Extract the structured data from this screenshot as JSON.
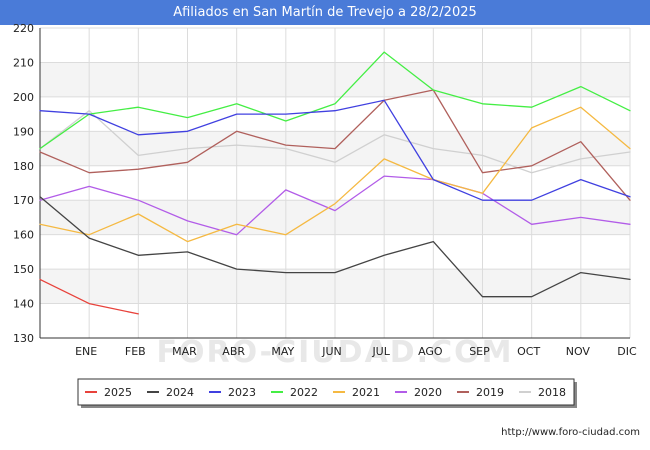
{
  "page": {
    "title": "Afiliados en San Martín de Trevejo a 28/2/2025"
  },
  "credit": "http://www.foro-ciudad.com",
  "watermark": "FORO-CIUDAD.COM",
  "chart_data": {
    "type": "line",
    "categories": [
      "",
      "ENE",
      "FEB",
      "MAR",
      "ABR",
      "MAY",
      "JUN",
      "JUL",
      "AGO",
      "SEP",
      "OCT",
      "NOV",
      "DIC"
    ],
    "y_ticks": [
      130,
      140,
      150,
      160,
      170,
      180,
      190,
      200,
      210,
      220
    ],
    "ylim": [
      130,
      220
    ],
    "grid": true,
    "legend_position": "bottom",
    "series": [
      {
        "name": "2025",
        "color": "#e8423b",
        "values": [
          147,
          140,
          137,
          null,
          null,
          null,
          null,
          null,
          null,
          null,
          null,
          null,
          null
        ]
      },
      {
        "name": "2024",
        "color": "#444444",
        "values": [
          171,
          159,
          154,
          155,
          150,
          149,
          149,
          154,
          158,
          142,
          142,
          149,
          147
        ]
      },
      {
        "name": "2023",
        "color": "#4040e0",
        "values": [
          196,
          195,
          189,
          190,
          195,
          195,
          196,
          199,
          176,
          170,
          170,
          176,
          171
        ]
      },
      {
        "name": "2022",
        "color": "#44ee44",
        "values": [
          185,
          195,
          197,
          194,
          198,
          193,
          198,
          213,
          202,
          198,
          197,
          203,
          196
        ]
      },
      {
        "name": "2021",
        "color": "#f5b942",
        "values": [
          163,
          160,
          166,
          158,
          163,
          160,
          169,
          182,
          176,
          172,
          191,
          197,
          185
        ]
      },
      {
        "name": "2020",
        "color": "#b25ce8",
        "values": [
          170,
          174,
          170,
          164,
          160,
          173,
          167,
          177,
          176,
          172,
          163,
          165,
          163
        ]
      },
      {
        "name": "2019",
        "color": "#b0605c",
        "values": [
          184,
          178,
          179,
          181,
          190,
          186,
          185,
          199,
          202,
          178,
          180,
          187,
          170
        ]
      },
      {
        "name": "2018",
        "color": "#d0d0d0",
        "values": [
          185,
          196,
          183,
          185,
          186,
          185,
          181,
          189,
          185,
          183,
          178,
          182,
          184
        ]
      }
    ]
  }
}
